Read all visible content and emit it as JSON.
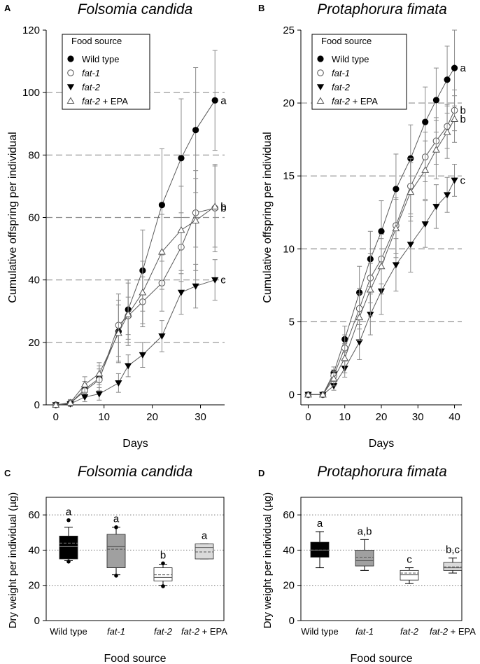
{
  "chart_data": [
    {
      "panel": "A",
      "type": "line",
      "title": "Folsomia candida",
      "xlabel": "Days",
      "ylabel": "Cumulative offspring per individual",
      "xlim": [
        -2,
        35
      ],
      "ylim": [
        0,
        120
      ],
      "xticks": [
        0,
        10,
        20,
        30
      ],
      "yticks": [
        0,
        20,
        40,
        60,
        80,
        100,
        120
      ],
      "gridlines": [
        20,
        40,
        60,
        80,
        100
      ],
      "legend_title": "Food source",
      "series": [
        {
          "name": "Wild type",
          "marker": "filled-circle",
          "x": [
            0,
            3,
            6,
            9,
            13,
            15,
            18,
            22,
            26,
            29,
            33
          ],
          "y": [
            0,
            0.5,
            5,
            8.5,
            23.5,
            30.5,
            43,
            64,
            79,
            88,
            97.5
          ],
          "err": [
            0.5,
            1,
            2.5,
            4,
            10,
            9.5,
            13,
            18,
            19,
            20,
            16
          ],
          "sig": "a"
        },
        {
          "name": "fat-1",
          "marker": "open-circle",
          "x": [
            0,
            3,
            6,
            9,
            13,
            15,
            18,
            22,
            26,
            29,
            33
          ],
          "y": [
            0,
            0.5,
            4.5,
            8,
            25.5,
            28.5,
            33,
            39,
            50.5,
            61.5,
            63
          ],
          "err": [
            0.5,
            0.8,
            2,
            3.5,
            10,
            6,
            8,
            9,
            11,
            11,
            14
          ],
          "sig": "b"
        },
        {
          "name": "fat-2",
          "marker": "filled-triangle-down",
          "x": [
            0,
            3,
            6,
            9,
            13,
            15,
            18,
            22,
            26,
            29,
            33
          ],
          "y": [
            0,
            0.3,
            2.5,
            3.5,
            7,
            12.5,
            16,
            22,
            36,
            38,
            40
          ],
          "err": [
            0.3,
            0.5,
            1.5,
            2,
            3,
            3.5,
            4,
            5,
            7,
            7,
            6.5
          ],
          "sig": "c"
        },
        {
          "name": "fat-2 + EPA",
          "marker": "open-triangle-up",
          "x": [
            0,
            3,
            6,
            9,
            13,
            15,
            18,
            22,
            26,
            29,
            33
          ],
          "y": [
            0,
            0.7,
            6.5,
            10,
            23,
            29,
            36,
            49,
            56,
            59,
            63.5
          ],
          "err": [
            0.5,
            1,
            2.5,
            3.5,
            9,
            10,
            10,
            12,
            14,
            16,
            13
          ],
          "sig": "b"
        }
      ]
    },
    {
      "panel": "B",
      "type": "line",
      "title": "Protaphorura fimata",
      "xlabel": "Days",
      "ylabel": "Cumulative offspring per individual",
      "xlim": [
        -2,
        42
      ],
      "ylim": [
        -0.7,
        25
      ],
      "xticks": [
        0,
        10,
        20,
        30,
        40
      ],
      "yticks": [
        0,
        5,
        10,
        15,
        20,
        25
      ],
      "gridlines": [
        5,
        10,
        15,
        20
      ],
      "legend_title": "Food source",
      "series": [
        {
          "name": "Wild type",
          "marker": "filled-circle",
          "x": [
            0,
            4,
            7,
            10,
            14,
            17,
            20,
            24,
            28,
            32,
            35,
            38,
            40
          ],
          "y": [
            0,
            0,
            1.5,
            3.8,
            7,
            9.3,
            11.2,
            14.1,
            16.2,
            18.7,
            20.2,
            21.6,
            22.4
          ],
          "err": [
            0.05,
            0.05,
            0.4,
            0.9,
            1.8,
            1.9,
            2.1,
            2.4,
            2.3,
            2.4,
            2.2,
            2.3,
            2.6
          ],
          "sig": "a"
        },
        {
          "name": "fat-1",
          "marker": "open-circle",
          "x": [
            0,
            4,
            7,
            10,
            14,
            17,
            20,
            24,
            28,
            32,
            35,
            38,
            40
          ],
          "y": [
            0,
            0,
            1.3,
            3.2,
            5.9,
            8,
            9.3,
            11.6,
            14.3,
            16.3,
            17.4,
            18.4,
            19.5
          ],
          "err": [
            0.05,
            0.05,
            0.4,
            0.9,
            1.4,
            1.7,
            1.7,
            1.9,
            1.9,
            1.7,
            1.6,
            1.5,
            1.4
          ],
          "sig": "b"
        },
        {
          "name": "fat-2",
          "marker": "filled-triangle-down",
          "x": [
            0,
            4,
            7,
            10,
            14,
            17,
            20,
            24,
            28,
            32,
            35,
            38,
            40
          ],
          "y": [
            0,
            0,
            0.6,
            1.8,
            3.6,
            5.5,
            7.1,
            8.9,
            10.3,
            11.7,
            12.9,
            13.7,
            14.7
          ],
          "err": [
            0.05,
            0.05,
            0.3,
            0.6,
            1.2,
            1.4,
            1.6,
            1.8,
            1.9,
            1.6,
            1.5,
            1.2,
            1.1
          ],
          "sig": "c"
        },
        {
          "name": "fat-2 + EPA",
          "marker": "open-triangle-up",
          "x": [
            0,
            4,
            7,
            10,
            14,
            17,
            20,
            24,
            28,
            32,
            35,
            38,
            40
          ],
          "y": [
            0,
            0,
            1.1,
            2.5,
            5.3,
            7.2,
            8.8,
            11.4,
            13.9,
            15.4,
            16.8,
            18,
            18.9
          ],
          "err": [
            0.05,
            0.05,
            0.5,
            1,
            1.6,
            1.8,
            1.9,
            2,
            2,
            2,
            2,
            1.8,
            1.6
          ],
          "sig": "b"
        }
      ]
    },
    {
      "panel": "C",
      "type": "box",
      "title": "Folsomia candida",
      "xlabel": "Food source",
      "ylabel": "Dry weight per individual (µg)",
      "ylim": [
        0,
        70
      ],
      "yticks": [
        0,
        20,
        40,
        60
      ],
      "gridlines": [
        20,
        40,
        60
      ],
      "categories": [
        "Wild type",
        "fat-1",
        "fat-2",
        "fat-2 + EPA"
      ],
      "boxes": [
        {
          "q1": 35,
          "median": 42,
          "mean": 44,
          "q3": 48,
          "whislo": 34,
          "whishi": 53,
          "outliers": [
            57,
            33.5
          ],
          "fill": "#000000",
          "sig": "a"
        },
        {
          "q1": 30,
          "median": 42,
          "mean": 40.5,
          "q3": 49,
          "whislo": 26,
          "whishi": 53,
          "outliers": [
            53,
            25.5
          ],
          "fill": "#a0a0a0",
          "sig": "a"
        },
        {
          "q1": 22.5,
          "median": 24.5,
          "mean": 26,
          "q3": 30,
          "whislo": 20,
          "whishi": 32,
          "outliers": [
            32.5,
            19.5
          ],
          "fill": "#ffffff",
          "sig": "b"
        },
        {
          "q1": 35,
          "median": 41.5,
          "mean": 39,
          "q3": 43.5,
          "whislo": 35,
          "whishi": 43.5,
          "outliers": [],
          "fill": "#dadada",
          "sig": "a"
        }
      ]
    },
    {
      "panel": "D",
      "type": "box",
      "title": "Protaphorura fimata",
      "xlabel": "Food source",
      "ylabel": "Dry weight per individual (µg)",
      "ylim": [
        0,
        70
      ],
      "yticks": [
        0,
        20,
        40,
        60
      ],
      "gridlines": [
        20,
        40,
        60
      ],
      "categories": [
        "Wild type",
        "fat-1",
        "fat-2",
        "fat-2 + EPA"
      ],
      "boxes": [
        {
          "q1": 36,
          "median": 40,
          "mean": 40,
          "q3": 44.5,
          "whislo": 30,
          "whishi": 50.5,
          "outliers": [],
          "fill": "#000000",
          "sig": "a"
        },
        {
          "q1": 31,
          "median": 34,
          "mean": 36,
          "q3": 40,
          "whislo": 28.5,
          "whishi": 46,
          "outliers": [],
          "fill": "#a0a0a0",
          "sig": "a,b"
        },
        {
          "q1": 23,
          "median": 26,
          "mean": 27,
          "q3": 28.5,
          "whislo": 21,
          "whishi": 30,
          "outliers": [],
          "fill": "#ffffff",
          "sig": "c"
        },
        {
          "q1": 28.5,
          "median": 30,
          "mean": 30.5,
          "q3": 33,
          "whislo": 27,
          "whishi": 35.5,
          "outliers": [],
          "fill": "#dadada",
          "sig": "b,c"
        }
      ]
    }
  ]
}
